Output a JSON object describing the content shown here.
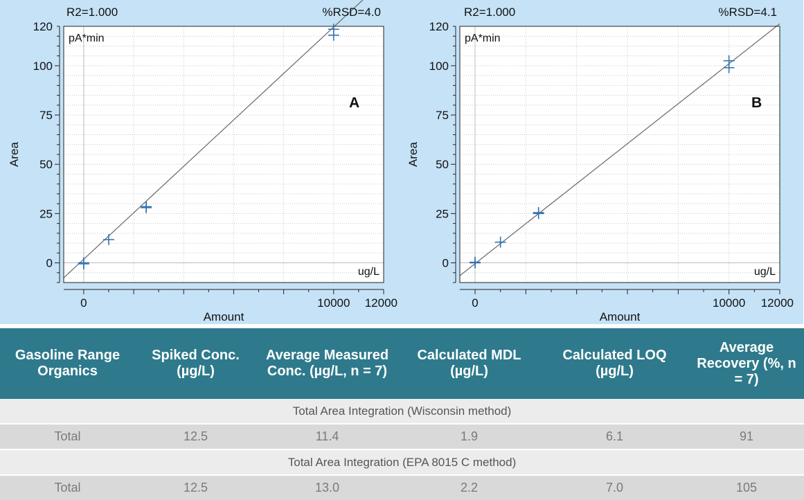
{
  "chart_data": [
    {
      "type": "scatter",
      "panel_label": "A",
      "stat_left": "R2=1.000",
      "stat_right": "%RSD=4.0",
      "y_unit": "pA*min",
      "x_unit": "ug/L",
      "xlabel": "Amount",
      "ylabel": "Area",
      "xlim": [
        -800,
        12000
      ],
      "ylim": [
        -10,
        120
      ],
      "x_ticks": [
        0,
        10000,
        12000
      ],
      "y_ticks": [
        0,
        25,
        50,
        75,
        100,
        120
      ],
      "grid": true,
      "points": [
        {
          "x": 0,
          "y": 0
        },
        {
          "x": 0,
          "y": -0.5
        },
        {
          "x": 1000,
          "y": 11.8
        },
        {
          "x": 2500,
          "y": 28.5
        },
        {
          "x": 2500,
          "y": 28.0
        },
        {
          "x": 10000,
          "y": 118.5
        },
        {
          "x": 10000,
          "y": 115.5
        }
      ],
      "fit_line": [
        {
          "x": -800,
          "y": -7.6
        },
        {
          "x": 12000,
          "y": 143.2
        }
      ]
    },
    {
      "type": "scatter",
      "panel_label": "B",
      "stat_left": "R2=1.000",
      "stat_right": "%RSD=4.1",
      "y_unit": "pA*min",
      "x_unit": "ug/L",
      "xlabel": "Amount",
      "ylabel": "Area",
      "xlim": [
        -600,
        12000
      ],
      "ylim": [
        -10,
        120
      ],
      "x_ticks": [
        0,
        10000,
        12000
      ],
      "y_ticks": [
        0,
        25,
        50,
        75,
        100,
        120
      ],
      "grid": true,
      "points": [
        {
          "x": 0,
          "y": 0
        },
        {
          "x": 0,
          "y": 0.3
        },
        {
          "x": 1000,
          "y": 10.5
        },
        {
          "x": 2500,
          "y": 25.5
        },
        {
          "x": 2500,
          "y": 25.0
        },
        {
          "x": 10000,
          "y": 102.5
        },
        {
          "x": 10000,
          "y": 99.0
        }
      ],
      "fit_line": [
        {
          "x": -600,
          "y": -6.5
        },
        {
          "x": 12000,
          "y": 121.3
        }
      ]
    }
  ],
  "table": {
    "headers": [
      "Gasoline Range Organics",
      "Spiked Conc. (µg/L)",
      "Average Measured Conc. (µg/L, n = 7)",
      "Calculated MDL (µg/L)",
      "Calculated LOQ (µg/L)",
      "Average Recovery (%, n = 7)"
    ],
    "section1": "Total Area Integration (Wisconsin method)",
    "row1": [
      "Total",
      "12.5",
      "11.4",
      "1.9",
      "6.1",
      "91"
    ],
    "section2": "Total Area Integration (EPA 8015 C method)",
    "row2": [
      "Total",
      "12.5",
      "13.0",
      "2.2",
      "7.0",
      "105"
    ]
  },
  "colors": {
    "panel_bg": "#c5e2f7",
    "plot_bg": "#ffffff",
    "marker": "#2a6fb0",
    "fit_line": "#707070",
    "header_bg": "#2e7a8c"
  }
}
